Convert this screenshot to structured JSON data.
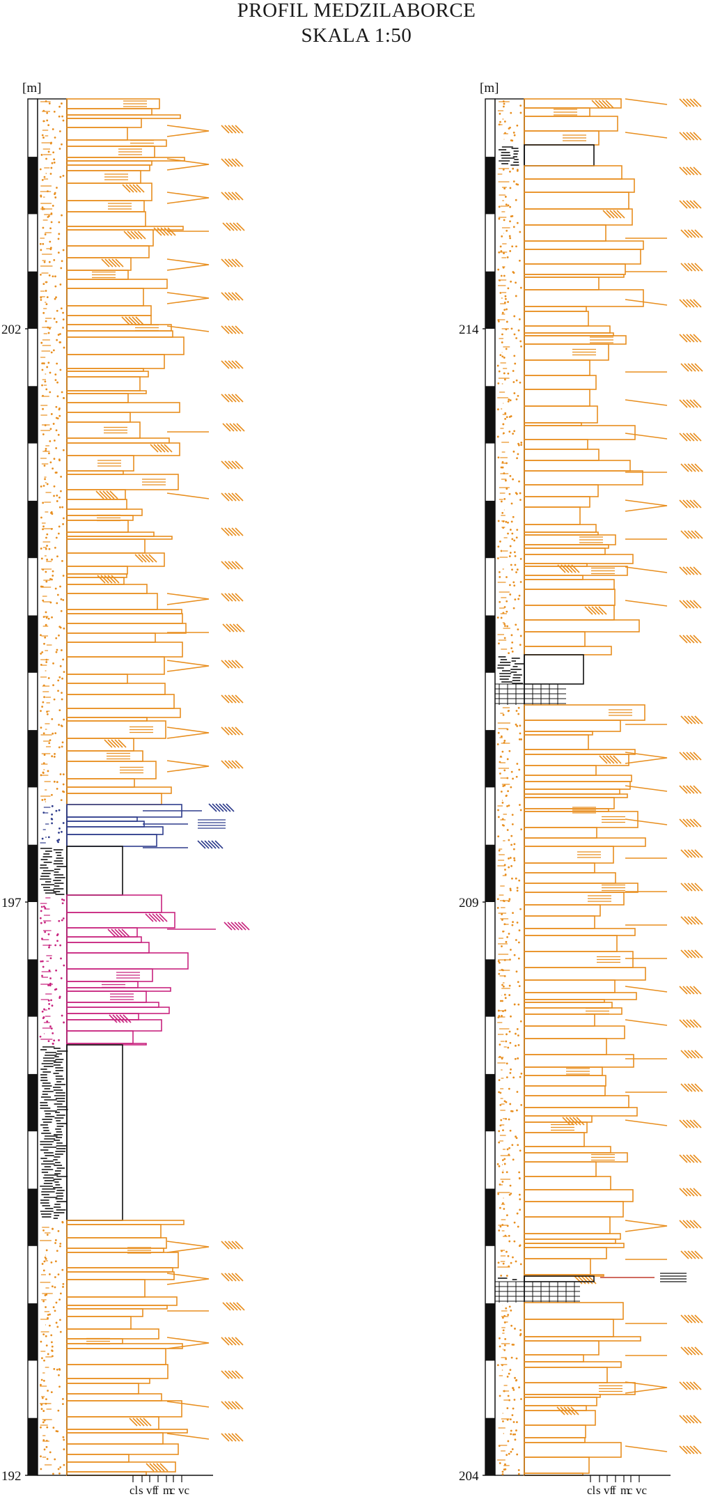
{
  "header": {
    "title": "PROFIL MEDZILABORCE",
    "scale": "SKALA 1:50"
  },
  "columns": [
    {
      "id": "left",
      "unit_label": "[m]",
      "depth_labels": [
        "202",
        "197",
        "192"
      ],
      "depth_values": [
        202,
        197,
        192
      ],
      "base_m": 192,
      "top_m": 204
    },
    {
      "id": "right",
      "unit_label": "[m]",
      "depth_labels": [
        "214",
        "209",
        "204"
      ],
      "depth_values": [
        214,
        209,
        204
      ],
      "base_m": 204,
      "top_m": 216
    }
  ],
  "grain_size_labels": [
    "cl",
    "s",
    "vf",
    "f",
    "m",
    "c",
    "vc"
  ],
  "legend_colors": {
    "sandstone": "#E88E1E",
    "blue_unit": "#2E3C8C",
    "magenta_unit": "#C8237E",
    "shale": "#111111",
    "red_line": "#C0392B"
  }
}
